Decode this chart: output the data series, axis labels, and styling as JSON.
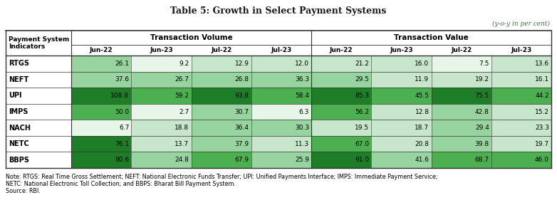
{
  "title": "Table 5: Growth in Select Payment Systems",
  "subtitle": "(y-o-y in per cent)",
  "col_groups": [
    "Transaction Volume",
    "Transaction Value"
  ],
  "sub_cols": [
    "Jun-22",
    "Jun-23",
    "Jul-22",
    "Jul-23"
  ],
  "row_labels": [
    "RTGS",
    "NEFT",
    "UPI",
    "IMPS",
    "NACH",
    "NETC",
    "BBPS"
  ],
  "header_label": "Payment System\nIndicators",
  "data": [
    [
      26.1,
      9.2,
      12.9,
      12.0,
      21.2,
      16.0,
      7.5,
      13.6
    ],
    [
      37.6,
      26.7,
      26.8,
      36.3,
      29.5,
      11.9,
      19.2,
      16.1
    ],
    [
      108.8,
      59.2,
      93.8,
      58.4,
      85.3,
      45.5,
      75.5,
      44.2
    ],
    [
      50.0,
      2.7,
      30.7,
      6.3,
      56.2,
      12.8,
      42.8,
      15.2
    ],
    [
      6.7,
      18.8,
      36.4,
      30.3,
      19.5,
      18.7,
      29.4,
      23.3
    ],
    [
      76.1,
      13.7,
      37.9,
      11.3,
      67.0,
      20.8,
      39.8,
      19.7
    ],
    [
      80.6,
      24.8,
      67.9,
      25.9,
      91.0,
      41.6,
      68.7,
      46.0
    ]
  ],
  "note_line1": "Note: RTGS: Real Time Gross Settlement; NEFT: National Electronic Funds Transfer; UPI: Unified Payments Interface; IMPS: Immediate Payment Service;",
  "note_line2": "NETC: National Electronic Toll Collection; and BBPS: Bharat Bill Payment System.",
  "source_text": "Source: RBI.",
  "border_color": "#333333",
  "green_dark": "#1e7e28",
  "green_mid": "#4caf50",
  "green_light": "#98d4a0",
  "green_very_light": "#c8e6cb",
  "green_pale": "#e8f5e9",
  "title_color": "#1a1a1a",
  "subtitle_color": "#4a6a4a"
}
